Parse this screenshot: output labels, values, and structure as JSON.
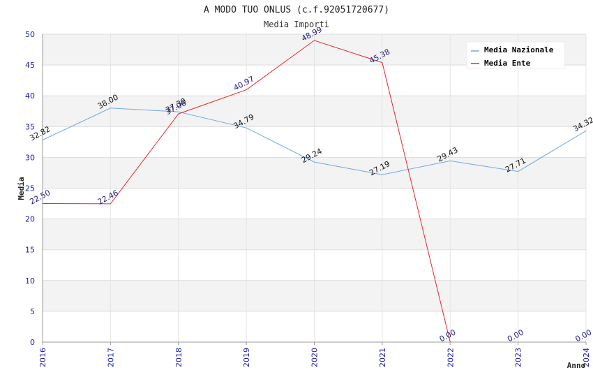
{
  "chart_data": {
    "type": "line",
    "title": "A MODO TUO ONLUS (c.f.92051720677)",
    "subtitle": "Media Importi",
    "xlabel": "Anno",
    "ylabel": "Media",
    "categories": [
      "2016",
      "2017",
      "2018",
      "2019",
      "2020",
      "2021",
      "2022",
      "2023",
      "2024"
    ],
    "ylim": [
      0,
      50
    ],
    "yticks": [
      0,
      5,
      10,
      15,
      20,
      25,
      30,
      35,
      40,
      45,
      50
    ],
    "grid": true,
    "legend_position": "top-right",
    "series": [
      {
        "name": "Media Nazionale",
        "color": "#6fa8e0",
        "values": [
          32.82,
          38.0,
          37.39,
          34.79,
          29.24,
          27.19,
          29.43,
          27.71,
          34.32
        ],
        "labels": [
          "32.82",
          "38.00",
          "37.39",
          "34.79",
          "29.24",
          "27.19",
          "29.43",
          "27.71",
          "34.32"
        ],
        "drawn_through": 8
      },
      {
        "name": "Media Ente",
        "color": "#e8262b",
        "values": [
          22.5,
          22.46,
          37.06,
          40.97,
          48.99,
          45.38,
          0.0,
          0.0,
          0.0
        ],
        "labels": [
          "22.50",
          "22.46",
          "37.06",
          "40.97",
          "48.99",
          "45.38",
          "0.00",
          "0.00",
          "0.00"
        ],
        "drawn_through": 6
      }
    ]
  }
}
